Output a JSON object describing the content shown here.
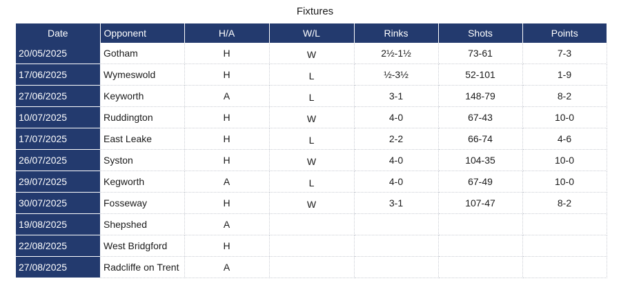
{
  "title": "Fixtures",
  "headers": {
    "date": "Date",
    "opponent": "Opponent",
    "ha": "H/A",
    "wl": "W/L",
    "rinks": "Rinks",
    "shots": "Shots",
    "points": "Points"
  },
  "rows": [
    {
      "date": "20/05/2025",
      "opponent": "Gotham",
      "ha": "H",
      "wl": "W",
      "rinks": "2½-1½",
      "shots": "73-61",
      "points": "7-3"
    },
    {
      "date": "17/06/2025",
      "opponent": "Wymeswold",
      "ha": "H",
      "wl": "L",
      "rinks": "½-3½",
      "shots": "52-101",
      "points": "1-9"
    },
    {
      "date": "27/06/2025",
      "opponent": "Keyworth",
      "ha": "A",
      "wl": "L",
      "rinks": "3-1",
      "shots": "148-79",
      "points": "8-2"
    },
    {
      "date": "10/07/2025",
      "opponent": "Ruddington",
      "ha": "H",
      "wl": "W",
      "rinks": "4-0",
      "shots": "67-43",
      "points": "10-0"
    },
    {
      "date": "17/07/2025",
      "opponent": "East Leake",
      "ha": "H",
      "wl": "L",
      "rinks": "2-2",
      "shots": "66-74",
      "points": "4-6"
    },
    {
      "date": "26/07/2025",
      "opponent": "Syston",
      "ha": "H",
      "wl": "W",
      "rinks": "4-0",
      "shots": "104-35",
      "points": "10-0"
    },
    {
      "date": "29/07/2025",
      "opponent": "Kegworth",
      "ha": "A",
      "wl": "L",
      "rinks": "4-0",
      "shots": "67-49",
      "points": "10-0"
    },
    {
      "date": "30/07/2025",
      "opponent": "Fosseway",
      "ha": "H",
      "wl": "W",
      "rinks": "3-1",
      "shots": "107-47",
      "points": "8-2"
    },
    {
      "date": "19/08/2025",
      "opponent": "Shepshed",
      "ha": "A",
      "wl": "",
      "rinks": "",
      "shots": "",
      "points": ""
    },
    {
      "date": "22/08/2025",
      "opponent": "West Bridgford",
      "ha": "H",
      "wl": "",
      "rinks": "",
      "shots": "",
      "points": ""
    },
    {
      "date": "27/08/2025",
      "opponent": "Radcliffe on Trent",
      "ha": "A",
      "wl": "",
      "rinks": "",
      "shots": "",
      "points": ""
    }
  ]
}
